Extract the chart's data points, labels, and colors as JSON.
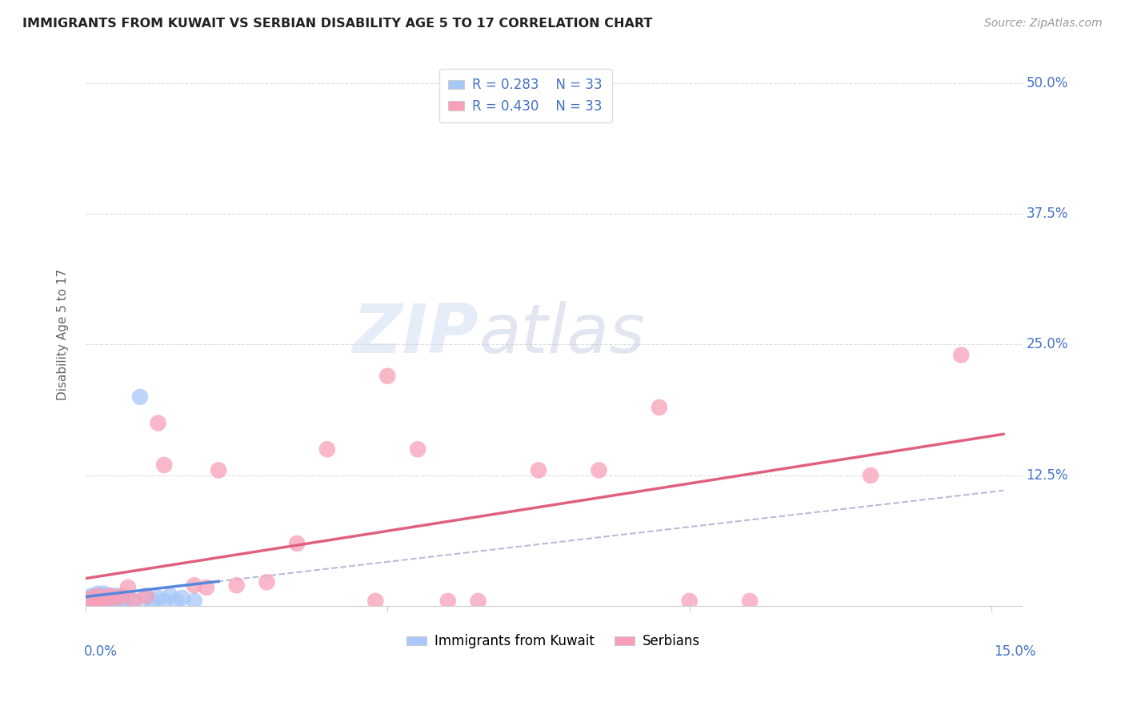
{
  "title": "IMMIGRANTS FROM KUWAIT VS SERBIAN DISABILITY AGE 5 TO 17 CORRELATION CHART",
  "source": "Source: ZipAtlas.com",
  "ylabel": "Disability Age 5 to 17",
  "r_kuwait": 0.283,
  "n_kuwait": 33,
  "r_serbian": 0.43,
  "n_serbian": 33,
  "color_kuwait": "#a8c8f8",
  "color_serbian": "#f8a0b8",
  "trendline_kuwait_color": "#5588dd",
  "trendline_serbian_color": "#e06080",
  "legend_label_kuwait": "Immigrants from Kuwait",
  "legend_label_serbian": "Serbians",
  "watermark_zip": "ZIP",
  "watermark_atlas": "atlas",
  "background_color": "#ffffff",
  "grid_color": "#dddddd",
  "kuwait_x": [
    0.0005,
    0.001,
    0.001,
    0.001,
    0.0015,
    0.002,
    0.002,
    0.002,
    0.002,
    0.002,
    0.003,
    0.003,
    0.003,
    0.003,
    0.003,
    0.004,
    0.004,
    0.004,
    0.005,
    0.005,
    0.006,
    0.006,
    0.007,
    0.008,
    0.009,
    0.01,
    0.011,
    0.012,
    0.013,
    0.014,
    0.015,
    0.016,
    0.018
  ],
  "kuwait_y": [
    0.005,
    0.005,
    0.008,
    0.01,
    0.005,
    0.005,
    0.008,
    0.01,
    0.012,
    0.005,
    0.005,
    0.008,
    0.01,
    0.012,
    0.005,
    0.008,
    0.01,
    0.005,
    0.005,
    0.01,
    0.008,
    0.005,
    0.008,
    0.005,
    0.2,
    0.008,
    0.005,
    0.008,
    0.005,
    0.01,
    0.005,
    0.008,
    0.005
  ],
  "serbian_x": [
    0.0005,
    0.001,
    0.002,
    0.002,
    0.003,
    0.003,
    0.004,
    0.005,
    0.006,
    0.007,
    0.008,
    0.01,
    0.012,
    0.013,
    0.018,
    0.02,
    0.022,
    0.025,
    0.03,
    0.035,
    0.04,
    0.048,
    0.05,
    0.055,
    0.06,
    0.065,
    0.075,
    0.085,
    0.095,
    0.1,
    0.11,
    0.13,
    0.145
  ],
  "serbian_y": [
    0.005,
    0.008,
    0.005,
    0.01,
    0.005,
    0.008,
    0.01,
    0.008,
    0.01,
    0.018,
    0.005,
    0.01,
    0.175,
    0.135,
    0.02,
    0.018,
    0.13,
    0.02,
    0.023,
    0.06,
    0.15,
    0.005,
    0.22,
    0.15,
    0.005,
    0.005,
    0.13,
    0.13,
    0.19,
    0.005,
    0.005,
    0.125,
    0.24
  ],
  "xlim": [
    0.0,
    0.155
  ],
  "ylim": [
    0.0,
    0.52
  ],
  "ytick_positions": [
    0.125,
    0.25,
    0.375,
    0.5
  ],
  "ytick_labels": [
    "12.5%",
    "25.0%",
    "37.5%",
    "50.0%"
  ]
}
